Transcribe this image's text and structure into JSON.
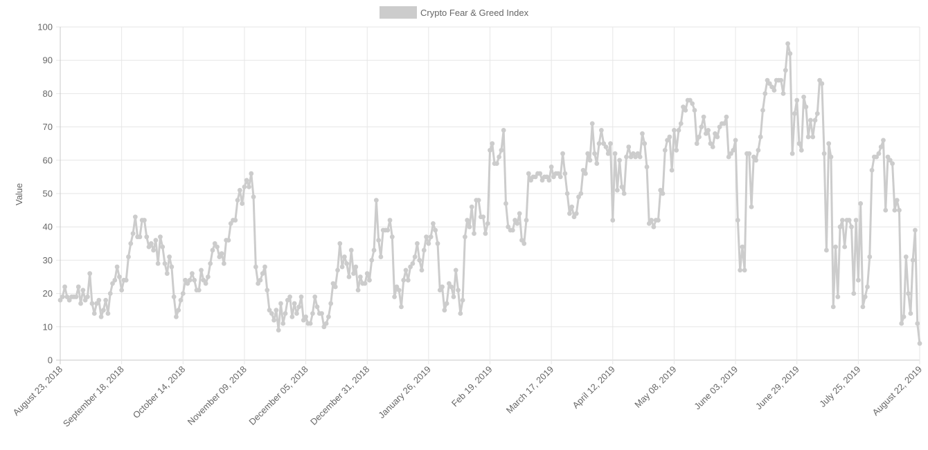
{
  "chart_data": {
    "type": "line",
    "title": "",
    "legend": {
      "position": "top",
      "entries": [
        "Crypto Fear & Greed Index"
      ]
    },
    "ylabel": "Value",
    "xlabel": "",
    "ylim": [
      0,
      100
    ],
    "yticks": [
      0,
      10,
      20,
      30,
      40,
      50,
      60,
      70,
      80,
      90,
      100
    ],
    "grid": true,
    "x_tick_labels": [
      "August 23, 2018",
      "September 18, 2018",
      "October 14, 2018",
      "November 09, 2018",
      "December 05, 2018",
      "December 31, 2018",
      "January 26, 2019",
      "Feb 19, 2019",
      "March 17, 2019",
      "April 12, 2019",
      "May 08, 2019",
      "June 03, 2019",
      "June 29, 2019",
      "July 25, 2019",
      "August 22, 2019"
    ],
    "x_range": [
      "2018-08-23",
      "2019-08-22"
    ],
    "series": [
      {
        "name": "Crypto Fear & Greed Index",
        "color": "#cccccc",
        "values": [
          18,
          19,
          22,
          19,
          18,
          19,
          19,
          19,
          22,
          17,
          21,
          18,
          19,
          26,
          17,
          14,
          17,
          18,
          13,
          15,
          18,
          14,
          20,
          23,
          24,
          28,
          25,
          21,
          24,
          24,
          31,
          35,
          38,
          43,
          37,
          37,
          42,
          42,
          37,
          34,
          35,
          33,
          36,
          29,
          37,
          34,
          29,
          26,
          31,
          28,
          19,
          13,
          15,
          18,
          20,
          24,
          23,
          24,
          26,
          24,
          21,
          21,
          27,
          24,
          23,
          25,
          29,
          33,
          35,
          34,
          31,
          32,
          29,
          36,
          36,
          41,
          42,
          42,
          48,
          51,
          47,
          52,
          54,
          52,
          56,
          49,
          28,
          23,
          24,
          26,
          28,
          21,
          15,
          14,
          12,
          15,
          9,
          17,
          11,
          14,
          18,
          19,
          13,
          17,
          14,
          16,
          19,
          12,
          13,
          11,
          11,
          14,
          19,
          16,
          14,
          14,
          10,
          11,
          13,
          17,
          23,
          22,
          27,
          35,
          28,
          31,
          29,
          25,
          33,
          26,
          28,
          21,
          25,
          23,
          23,
          26,
          24,
          30,
          33,
          48,
          36,
          31,
          39,
          39,
          39,
          42,
          37,
          19,
          22,
          21,
          16,
          24,
          27,
          24,
          28,
          29,
          31,
          35,
          30,
          27,
          33,
          37,
          35,
          37,
          41,
          39,
          35,
          21,
          22,
          15,
          17,
          23,
          22,
          19,
          27,
          21,
          14,
          18,
          37,
          42,
          40,
          46,
          38,
          48,
          48,
          43,
          43,
          38,
          41,
          63,
          65,
          59,
          59,
          61,
          63,
          69,
          47,
          40,
          39,
          39,
          42,
          41,
          44,
          36,
          35,
          42,
          56,
          54,
          55,
          55,
          56,
          56,
          54,
          55,
          55,
          54,
          58,
          55,
          56,
          56,
          55,
          62,
          56,
          50,
          44,
          46,
          43,
          44,
          49,
          50,
          57,
          56,
          62,
          60,
          71,
          62,
          59,
          65,
          69,
          65,
          64,
          62,
          65,
          42,
          62,
          51,
          60,
          52,
          50,
          61,
          64,
          61,
          62,
          61,
          62,
          61,
          68,
          65,
          58,
          41,
          42,
          40,
          42,
          42,
          51,
          50,
          63,
          66,
          67,
          57,
          69,
          63,
          69,
          71,
          76,
          75,
          78,
          78,
          77,
          75,
          65,
          67,
          70,
          73,
          68,
          69,
          65,
          64,
          68,
          67,
          70,
          71,
          71,
          73,
          61,
          62,
          63,
          66,
          42,
          27,
          34,
          27,
          62,
          62,
          46,
          61,
          60,
          63,
          67,
          75,
          80,
          84,
          83,
          82,
          81,
          84,
          84,
          84,
          80,
          87,
          95,
          92,
          62,
          74,
          78,
          65,
          63,
          79,
          76,
          67,
          72,
          67,
          72,
          74,
          84,
          83,
          62,
          33,
          65,
          61,
          16,
          34,
          19,
          40,
          42,
          34,
          42,
          42,
          40,
          20,
          42,
          24,
          47,
          16,
          19,
          22,
          31,
          57,
          61,
          61,
          62,
          64,
          66,
          45,
          61,
          60,
          59,
          45,
          48,
          45,
          11,
          13,
          31,
          20,
          14,
          30,
          39,
          11,
          5
        ]
      }
    ]
  }
}
